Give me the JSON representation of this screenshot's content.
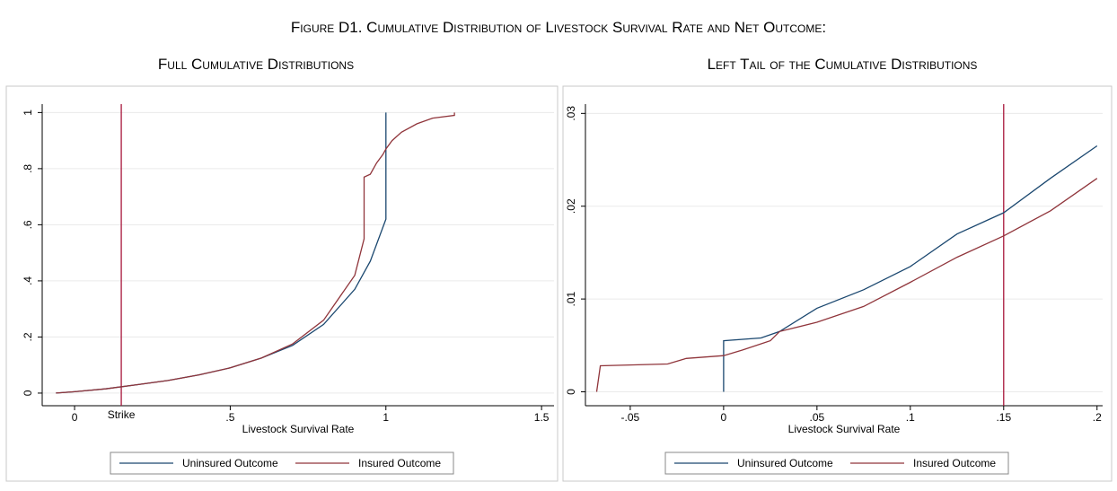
{
  "page_title": "Figure D1. Cumulative Distribution of Livestock Survival Rate and Net Outcome:",
  "chart_data": [
    {
      "type": "line",
      "subtitle": "Full Cumulative Distributions",
      "xlabel": "Livestock Survival Rate",
      "xlim": [
        -0.104,
        1.54
      ],
      "ylim": [
        -0.045,
        1.03
      ],
      "xticks": [
        0,
        {
          "value": 0.5,
          "label": ".5"
        },
        1,
        1.5
      ],
      "yticks": [
        0,
        {
          "value": 0.2,
          "label": ".2"
        },
        {
          "value": 0.4,
          "label": ".4"
        },
        {
          "value": 0.6,
          "label": ".6"
        },
        {
          "value": 0.8,
          "label": ".8"
        },
        1
      ],
      "grid": true,
      "legend": "bottom",
      "vline": {
        "value": 0.15,
        "color": "#a8163a",
        "label": "Strike"
      },
      "series": [
        {
          "name": "Uninsured Outcome",
          "color": "#1a476f",
          "x": [
            -0.06,
            0,
            0.1,
            0.2,
            0.3,
            0.4,
            0.5,
            0.6,
            0.7,
            0.8,
            0.9,
            0.95,
            1.0,
            1.0
          ],
          "values": [
            0,
            0.005,
            0.015,
            0.03,
            0.045,
            0.065,
            0.09,
            0.125,
            0.17,
            0.245,
            0.37,
            0.47,
            0.62,
            1.0
          ]
        },
        {
          "name": "Insured Outcome",
          "color": "#90353b",
          "x": [
            -0.06,
            0,
            0.1,
            0.2,
            0.3,
            0.4,
            0.5,
            0.6,
            0.7,
            0.8,
            0.9,
            0.93,
            0.93,
            0.95,
            0.97,
            0.99,
            1.0,
            1.02,
            1.05,
            1.1,
            1.15,
            1.22,
            1.22
          ],
          "values": [
            0,
            0.005,
            0.015,
            0.03,
            0.045,
            0.065,
            0.09,
            0.125,
            0.175,
            0.26,
            0.42,
            0.55,
            0.77,
            0.78,
            0.82,
            0.85,
            0.87,
            0.9,
            0.93,
            0.96,
            0.98,
            0.99,
            1.0
          ]
        }
      ]
    },
    {
      "type": "line",
      "subtitle": "Left Tail of the Cumulative Distributions",
      "xlabel": "Livestock Survival Rate",
      "xlim": [
        -0.074,
        0.203
      ],
      "ylim": [
        -0.0015,
        0.031
      ],
      "xticks": [
        {
          "value": -0.05,
          "label": "-.05"
        },
        0,
        {
          "value": 0.05,
          "label": ".05"
        },
        {
          "value": 0.1,
          "label": ".1"
        },
        {
          "value": 0.15,
          "label": ".15"
        },
        {
          "value": 0.2,
          "label": ".2"
        }
      ],
      "yticks": [
        0,
        {
          "value": 0.01,
          "label": ".01"
        },
        {
          "value": 0.02,
          "label": ".02"
        },
        {
          "value": 0.03,
          "label": ".03"
        }
      ],
      "grid": true,
      "legend": "bottom",
      "vline": {
        "value": 0.15,
        "color": "#a8163a"
      },
      "series": [
        {
          "name": "Uninsured Outcome",
          "color": "#1a476f",
          "x": [
            0,
            0,
            0.02,
            0.03,
            0.05,
            0.075,
            0.1,
            0.125,
            0.15,
            0.175,
            0.2
          ],
          "values": [
            0,
            0.0055,
            0.0058,
            0.0065,
            0.009,
            0.011,
            0.0135,
            0.017,
            0.0193,
            0.023,
            0.0265
          ]
        },
        {
          "name": "Insured Outcome",
          "color": "#90353b",
          "x": [
            -0.068,
            -0.066,
            -0.03,
            -0.02,
            0,
            0.01,
            0.025,
            0.03,
            0.05,
            0.075,
            0.1,
            0.125,
            0.15,
            0.175,
            0.2
          ],
          "values": [
            0,
            0.0028,
            0.003,
            0.0036,
            0.0039,
            0.0045,
            0.0055,
            0.0065,
            0.0075,
            0.0092,
            0.0118,
            0.0145,
            0.0168,
            0.0195,
            0.023
          ]
        }
      ]
    }
  ]
}
